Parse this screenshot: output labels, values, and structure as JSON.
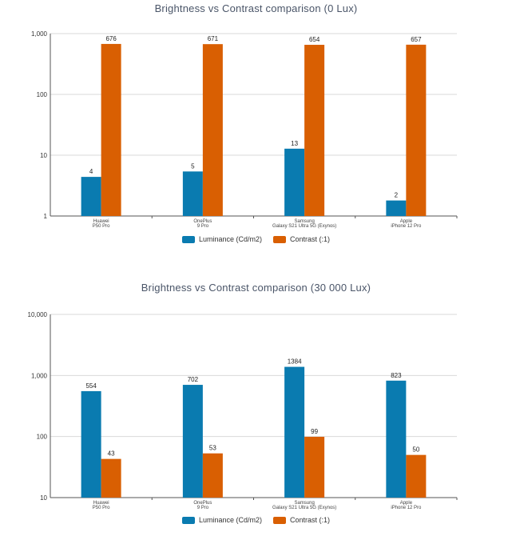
{
  "chart_data": [
    {
      "type": "bar",
      "title": "Brightness vs Contrast comparison (0 Lux)",
      "yscale": "log",
      "ylim": [
        1,
        1000
      ],
      "yticks": [
        "1",
        "10",
        "100",
        "1,000"
      ],
      "categories": [
        [
          "Huawei",
          "P50 Pro"
        ],
        [
          "OnePlus",
          "9 Pro"
        ],
        [
          "Samsung",
          "Galaxy S21 Ultra 5G (Exynos)"
        ],
        [
          "Apple",
          "iPhone 12 Pro"
        ]
      ],
      "series": [
        {
          "name": "Luminance (Cd/m2)",
          "color": "#0a7bb0",
          "values": [
            4.4,
            5.4,
            12.8,
            1.8
          ],
          "labels": [
            "4",
            "5",
            "13",
            "2"
          ]
        },
        {
          "name": "Contrast (:1)",
          "color": "#d95f02",
          "values": [
            676,
            671,
            654,
            657
          ],
          "labels": [
            "676",
            "671",
            "654",
            "657"
          ]
        }
      ],
      "legend_position": "bottom",
      "grid": true
    },
    {
      "type": "bar",
      "title": "Brightness vs Contrast comparison (30 000 Lux)",
      "yscale": "log",
      "ylim": [
        10,
        10000
      ],
      "yticks": [
        "10",
        "100",
        "1,000",
        "10,000"
      ],
      "categories": [
        [
          "Huawei",
          "P50 Pro"
        ],
        [
          "OnePlus",
          "9 Pro"
        ],
        [
          "Samsung",
          "Galaxy S21 Ultra 5G (Exynos)"
        ],
        [
          "Apple",
          "iPhone 12 Pro"
        ]
      ],
      "series": [
        {
          "name": "Luminance (Cd/m2)",
          "color": "#0a7bb0",
          "values": [
            554,
            702,
            1384,
            823
          ],
          "labels": [
            "554",
            "702",
            "1384",
            "823"
          ]
        },
        {
          "name": "Contrast (:1)",
          "color": "#d95f02",
          "values": [
            43,
            53,
            99,
            50
          ],
          "labels": [
            "43",
            "53",
            "99",
            "50"
          ]
        }
      ],
      "legend_position": "bottom",
      "grid": true
    }
  ]
}
